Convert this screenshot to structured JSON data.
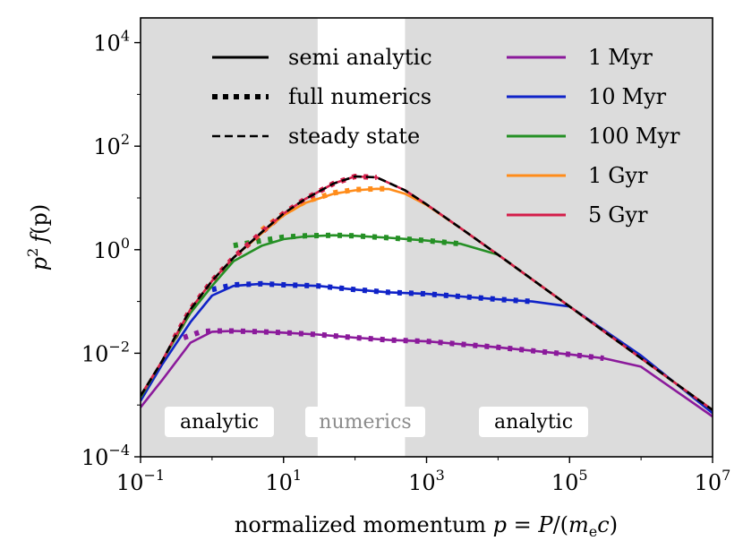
{
  "chart_data": {
    "type": "line",
    "xscale": "log",
    "yscale": "log",
    "xlabel": "normalized momentum p = P/(m_e c)",
    "xlabel_parts": {
      "prefix": "normalized momentum ",
      "p1": "p",
      "eq": " = ",
      "P": "P",
      "open": "/(",
      "m": "m",
      "sub": "e",
      "c": "c",
      "close": ")"
    },
    "ylabel": "p^2 f(p)",
    "ylabel_parts": {
      "p": "p",
      "sup": "2",
      "f": "f",
      "arg": "(p)"
    },
    "xlim": [
      0.1,
      10000000
    ],
    "ylim": [
      0.0001,
      30000
    ],
    "x_ticks": [
      {
        "value": 0.1,
        "base": "10",
        "exp": "−1"
      },
      {
        "value": 10,
        "base": "10",
        "exp": "1"
      },
      {
        "value": 1000,
        "base": "10",
        "exp": "3"
      },
      {
        "value": 100000,
        "base": "10",
        "exp": "5"
      },
      {
        "value": 10000000,
        "base": "10",
        "exp": "7"
      }
    ],
    "y_ticks": [
      {
        "value": 0.0001,
        "base": "10",
        "exp": "−4"
      },
      {
        "value": 0.01,
        "base": "10",
        "exp": "−2"
      },
      {
        "value": 1,
        "base": "10",
        "exp": "0"
      },
      {
        "value": 100,
        "base": "10",
        "exp": "2"
      },
      {
        "value": 10000,
        "base": "10",
        "exp": "4"
      }
    ],
    "numerics_window": [
      30,
      500
    ],
    "region_labels": [
      {
        "text": "analytic",
        "x": 1.5
      },
      {
        "text": "numerics",
        "x": 120
      },
      {
        "text": "analytic",
        "x": 25000
      }
    ],
    "style_legend": [
      {
        "label": "semi analytic",
        "style": "solid"
      },
      {
        "label": "full numerics",
        "style": "dotted"
      },
      {
        "label": "steady state",
        "style": "dashed"
      }
    ],
    "steady_state": {
      "name": "steady state",
      "style": "dashed",
      "color": "#000000",
      "x": [
        0.1,
        0.2,
        0.3,
        0.5,
        1,
        2,
        5,
        10,
        20,
        50,
        100,
        200,
        500,
        1000,
        3000,
        10000,
        100000,
        1000000,
        10000000
      ],
      "y": [
        0.0015,
        0.007,
        0.02,
        0.07,
        0.25,
        0.7,
        2.2,
        5,
        9.5,
        19,
        26,
        25,
        14,
        7.5,
        2.6,
        0.8,
        0.08,
        0.008,
        0.0008
      ]
    },
    "series": [
      {
        "name": "1 Myr",
        "color": "#8b1a9b",
        "x": [
          0.1,
          0.2,
          0.5,
          1,
          2,
          5,
          10,
          30,
          100,
          300,
          1000,
          10000,
          100000,
          300000,
          1000000,
          10000000
        ],
        "y": [
          0.0009,
          0.003,
          0.016,
          0.026,
          0.027,
          0.026,
          0.025,
          0.023,
          0.02,
          0.018,
          0.017,
          0.013,
          0.0095,
          0.008,
          0.0055,
          0.0006
        ],
        "numeric_x": [
          0.4,
          0.7,
          1,
          2,
          5,
          10,
          30,
          100,
          300,
          1000,
          10000,
          100000,
          300000
        ],
        "numeric_y": [
          0.02,
          0.026,
          0.027,
          0.027,
          0.026,
          0.025,
          0.023,
          0.02,
          0.018,
          0.017,
          0.013,
          0.0095,
          0.008
        ]
      },
      {
        "name": "10 Myr",
        "color": "#1023c8",
        "x": [
          0.1,
          0.2,
          0.5,
          1,
          2,
          5,
          10,
          30,
          100,
          300,
          1000,
          10000,
          30000,
          100000,
          1000000,
          10000000
        ],
        "y": [
          0.0012,
          0.006,
          0.04,
          0.13,
          0.2,
          0.22,
          0.21,
          0.2,
          0.17,
          0.15,
          0.14,
          0.11,
          0.1,
          0.08,
          0.009,
          0.0007
        ],
        "numeric_x": [
          1,
          2,
          5,
          10,
          30,
          100,
          300,
          1000,
          10000,
          30000
        ],
        "numeric_y": [
          0.17,
          0.21,
          0.22,
          0.21,
          0.2,
          0.17,
          0.15,
          0.14,
          0.11,
          0.1
        ]
      },
      {
        "name": "100 Myr",
        "color": "#259025",
        "x": [
          0.1,
          0.2,
          0.5,
          1,
          2,
          5,
          10,
          20,
          50,
          100,
          300,
          1000,
          3000,
          10000,
          100000,
          1000000,
          10000000
        ],
        "y": [
          0.0014,
          0.007,
          0.06,
          0.2,
          0.6,
          1.2,
          1.6,
          1.8,
          1.9,
          1.85,
          1.7,
          1.5,
          1.3,
          0.8,
          0.08,
          0.008,
          0.0008
        ],
        "numeric_x": [
          2,
          5,
          10,
          20,
          50,
          100,
          300,
          1000,
          3000
        ],
        "numeric_y": [
          1.2,
          1.5,
          1.75,
          1.85,
          1.9,
          1.85,
          1.7,
          1.5,
          1.3
        ]
      },
      {
        "name": "1 Gyr",
        "color": "#ff8c1a",
        "x": [
          0.1,
          0.2,
          0.5,
          1,
          2,
          5,
          10,
          20,
          50,
          100,
          200,
          300,
          500,
          1000,
          3000,
          10000,
          100000,
          1000000,
          10000000
        ],
        "y": [
          0.0015,
          0.007,
          0.07,
          0.25,
          0.7,
          2.1,
          4.6,
          8,
          12,
          14,
          15,
          14.8,
          12,
          7.3,
          2.6,
          0.8,
          0.08,
          0.008,
          0.0008
        ],
        "numeric_x": [
          5,
          10,
          20,
          50,
          100,
          200,
          300
        ],
        "numeric_y": [
          2.4,
          5,
          8.5,
          12.5,
          14.5,
          15,
          15
        ]
      },
      {
        "name": "5 Gyr",
        "color": "#d41e4a",
        "x": [
          0.1,
          0.2,
          0.3,
          0.5,
          1,
          2,
          5,
          10,
          20,
          50,
          100,
          200,
          500,
          1000,
          3000,
          10000,
          100000,
          1000000,
          10000000
        ],
        "y": [
          0.0015,
          0.007,
          0.02,
          0.07,
          0.25,
          0.7,
          2.2,
          5,
          9.5,
          19,
          26,
          25,
          14,
          7.5,
          2.6,
          0.8,
          0.08,
          0.008,
          0.0008
        ],
        "numeric_x": [
          0.3,
          0.5,
          1,
          2,
          5,
          10,
          20,
          50,
          100,
          200
        ],
        "numeric_y": [
          0.02,
          0.07,
          0.25,
          0.7,
          2.2,
          5,
          9.5,
          19,
          26,
          25
        ]
      }
    ],
    "legend_series_labels": {
      "m1": {
        "num": "1",
        "unit": "Myr"
      },
      "m2": {
        "num": "10",
        "unit": "Myr"
      },
      "m3": {
        "num": "100",
        "unit": "Myr"
      },
      "m4": {
        "num": "1",
        "unit": "Gyr"
      },
      "m5": {
        "num": "5",
        "unit": "Gyr"
      }
    }
  }
}
